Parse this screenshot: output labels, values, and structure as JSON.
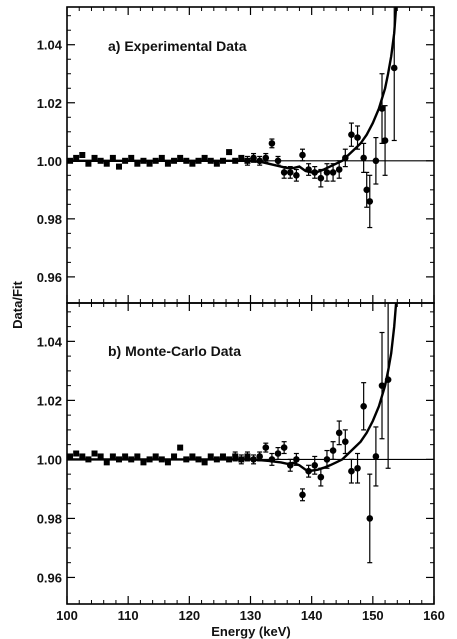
{
  "chart_data": [
    {
      "type": "scatter",
      "panel": "a",
      "title": "a) Experimental Data",
      "xlabel": "Energy (keV)",
      "ylabel": "Data/Fit",
      "xlim": [
        100,
        160
      ],
      "ylim": [
        0.951,
        1.053
      ],
      "x_ticks": [
        100,
        110,
        120,
        130,
        140,
        150,
        160
      ],
      "y_ticks": [
        "0.96",
        "0.98",
        "1.00",
        "1.02",
        "1.04"
      ],
      "reference_line": 1.0,
      "grid": false,
      "points": [
        {
          "x": 100.5,
          "y": 1.0,
          "err": 0.001
        },
        {
          "x": 101.5,
          "y": 1.001,
          "err": 0.001
        },
        {
          "x": 102.5,
          "y": 1.002,
          "err": 0.001
        },
        {
          "x": 103.5,
          "y": 0.999,
          "err": 0.001
        },
        {
          "x": 104.5,
          "y": 1.001,
          "err": 0.001
        },
        {
          "x": 105.5,
          "y": 1.0,
          "err": 0.001
        },
        {
          "x": 106.5,
          "y": 0.999,
          "err": 0.001
        },
        {
          "x": 107.5,
          "y": 1.001,
          "err": 0.001
        },
        {
          "x": 108.5,
          "y": 0.998,
          "err": 0.001
        },
        {
          "x": 109.5,
          "y": 1.0,
          "err": 0.001
        },
        {
          "x": 110.5,
          "y": 1.001,
          "err": 0.001
        },
        {
          "x": 111.5,
          "y": 0.999,
          "err": 0.001
        },
        {
          "x": 112.5,
          "y": 1.0,
          "err": 0.001
        },
        {
          "x": 113.5,
          "y": 0.999,
          "err": 0.001
        },
        {
          "x": 114.5,
          "y": 1.0,
          "err": 0.001
        },
        {
          "x": 115.5,
          "y": 1.001,
          "err": 0.001
        },
        {
          "x": 116.5,
          "y": 0.999,
          "err": 0.001
        },
        {
          "x": 117.5,
          "y": 1.0,
          "err": 0.001
        },
        {
          "x": 118.5,
          "y": 1.001,
          "err": 0.001
        },
        {
          "x": 119.5,
          "y": 1.0,
          "err": 0.001
        },
        {
          "x": 120.5,
          "y": 0.999,
          "err": 0.001
        },
        {
          "x": 121.5,
          "y": 1.0,
          "err": 0.001
        },
        {
          "x": 122.5,
          "y": 1.001,
          "err": 0.001
        },
        {
          "x": 123.5,
          "y": 1.0,
          "err": 0.001
        },
        {
          "x": 124.5,
          "y": 0.999,
          "err": 0.001
        },
        {
          "x": 125.5,
          "y": 1.0,
          "err": 0.001
        },
        {
          "x": 126.5,
          "y": 1.003,
          "err": 0.001
        },
        {
          "x": 127.5,
          "y": 1.0,
          "err": 0.001
        },
        {
          "x": 128.5,
          "y": 1.001,
          "err": 0.001
        },
        {
          "x": 129.5,
          "y": 1.0,
          "err": 0.0015
        },
        {
          "x": 130.5,
          "y": 1.001,
          "err": 0.0015
        },
        {
          "x": 131.5,
          "y": 1.0,
          "err": 0.0015
        },
        {
          "x": 132.5,
          "y": 1.001,
          "err": 0.0015
        },
        {
          "x": 133.5,
          "y": 1.006,
          "err": 0.0015
        },
        {
          "x": 134.5,
          "y": 1.0,
          "err": 0.0015
        },
        {
          "x": 135.5,
          "y": 0.996,
          "err": 0.002
        },
        {
          "x": 136.5,
          "y": 0.996,
          "err": 0.002
        },
        {
          "x": 137.5,
          "y": 0.995,
          "err": 0.002
        },
        {
          "x": 138.5,
          "y": 1.002,
          "err": 0.002
        },
        {
          "x": 139.5,
          "y": 0.997,
          "err": 0.002
        },
        {
          "x": 140.5,
          "y": 0.996,
          "err": 0.002
        },
        {
          "x": 141.5,
          "y": 0.994,
          "err": 0.003
        },
        {
          "x": 142.5,
          "y": 0.996,
          "err": 0.003
        },
        {
          "x": 143.5,
          "y": 0.996,
          "err": 0.003
        },
        {
          "x": 144.5,
          "y": 0.997,
          "err": 0.003
        },
        {
          "x": 145.5,
          "y": 1.001,
          "err": 0.003
        },
        {
          "x": 146.5,
          "y": 1.009,
          "err": 0.004
        },
        {
          "x": 147.5,
          "y": 1.008,
          "err": 0.004
        },
        {
          "x": 148.5,
          "y": 1.001,
          "err": 0.005
        },
        {
          "x": 149.0,
          "y": 0.99,
          "err": 0.006
        },
        {
          "x": 149.5,
          "y": 0.986,
          "err": 0.009
        },
        {
          "x": 150.5,
          "y": 1.0,
          "err": 0.008
        },
        {
          "x": 151.5,
          "y": 1.018,
          "err": 0.012
        },
        {
          "x": 152.0,
          "y": 1.007,
          "err": 0.012
        },
        {
          "x": 153.5,
          "y": 1.032,
          "err": 0.025
        }
      ],
      "fit_curve": [
        [
          100,
          1.0
        ],
        [
          130,
          1.0
        ],
        [
          132,
          0.9995
        ],
        [
          134,
          0.9985
        ],
        [
          136,
          0.9975
        ],
        [
          137,
          0.9975
        ],
        [
          138,
          0.998
        ],
        [
          139,
          0.9965
        ],
        [
          140,
          0.996
        ],
        [
          141,
          0.9962
        ],
        [
          142,
          0.997
        ],
        [
          143,
          0.998
        ],
        [
          144,
          0.999
        ],
        [
          145,
          1.0
        ],
        [
          146,
          1.002
        ],
        [
          147,
          1.004
        ],
        [
          148,
          1.006
        ],
        [
          149,
          1.009
        ],
        [
          150,
          1.013
        ],
        [
          151,
          1.018
        ],
        [
          152,
          1.025
        ],
        [
          152.5,
          1.03
        ],
        [
          153,
          1.036
        ],
        [
          153.5,
          1.044
        ],
        [
          153.8,
          1.053
        ]
      ]
    },
    {
      "type": "scatter",
      "panel": "b",
      "title": "b) Monte-Carlo Data",
      "xlabel": "Energy (keV)",
      "ylabel": "Data/Fit",
      "xlim": [
        100,
        160
      ],
      "ylim": [
        0.951,
        1.053
      ],
      "x_ticks": [
        100,
        110,
        120,
        130,
        140,
        150,
        160
      ],
      "y_ticks": [
        "0.96",
        "0.98",
        "1.00",
        "1.02",
        "1.04"
      ],
      "reference_line": 1.0,
      "grid": false,
      "points": [
        {
          "x": 100.5,
          "y": 1.001,
          "err": 0.001
        },
        {
          "x": 101.5,
          "y": 1.002,
          "err": 0.001
        },
        {
          "x": 102.5,
          "y": 1.001,
          "err": 0.001
        },
        {
          "x": 103.5,
          "y": 1.0,
          "err": 0.001
        },
        {
          "x": 104.5,
          "y": 1.002,
          "err": 0.001
        },
        {
          "x": 105.5,
          "y": 1.001,
          "err": 0.001
        },
        {
          "x": 106.5,
          "y": 0.999,
          "err": 0.001
        },
        {
          "x": 107.5,
          "y": 1.001,
          "err": 0.001
        },
        {
          "x": 108.5,
          "y": 1.0,
          "err": 0.001
        },
        {
          "x": 109.5,
          "y": 1.001,
          "err": 0.001
        },
        {
          "x": 110.5,
          "y": 1.0,
          "err": 0.001
        },
        {
          "x": 111.5,
          "y": 1.001,
          "err": 0.001
        },
        {
          "x": 112.5,
          "y": 0.999,
          "err": 0.001
        },
        {
          "x": 113.5,
          "y": 1.0,
          "err": 0.001
        },
        {
          "x": 114.5,
          "y": 1.001,
          "err": 0.001
        },
        {
          "x": 115.5,
          "y": 1.0,
          "err": 0.001
        },
        {
          "x": 116.5,
          "y": 0.999,
          "err": 0.001
        },
        {
          "x": 117.5,
          "y": 1.001,
          "err": 0.001
        },
        {
          "x": 118.5,
          "y": 1.004,
          "err": 0.001
        },
        {
          "x": 119.5,
          "y": 1.0,
          "err": 0.001
        },
        {
          "x": 120.5,
          "y": 1.001,
          "err": 0.001
        },
        {
          "x": 121.5,
          "y": 1.0,
          "err": 0.001
        },
        {
          "x": 122.5,
          "y": 0.999,
          "err": 0.001
        },
        {
          "x": 123.5,
          "y": 1.001,
          "err": 0.001
        },
        {
          "x": 124.5,
          "y": 1.0,
          "err": 0.001
        },
        {
          "x": 125.5,
          "y": 1.001,
          "err": 0.001
        },
        {
          "x": 126.5,
          "y": 1.0,
          "err": 0.001
        },
        {
          "x": 127.5,
          "y": 1.001,
          "err": 0.0015
        },
        {
          "x": 128.5,
          "y": 1.0,
          "err": 0.0015
        },
        {
          "x": 129.5,
          "y": 1.001,
          "err": 0.0015
        },
        {
          "x": 130.5,
          "y": 1.0,
          "err": 0.0015
        },
        {
          "x": 131.5,
          "y": 1.001,
          "err": 0.0015
        },
        {
          "x": 132.5,
          "y": 1.004,
          "err": 0.0015
        },
        {
          "x": 133.5,
          "y": 1.0,
          "err": 0.002
        },
        {
          "x": 134.5,
          "y": 1.002,
          "err": 0.002
        },
        {
          "x": 135.5,
          "y": 1.004,
          "err": 0.002
        },
        {
          "x": 136.5,
          "y": 0.998,
          "err": 0.002
        },
        {
          "x": 137.5,
          "y": 1.0,
          "err": 0.002
        },
        {
          "x": 138.5,
          "y": 0.988,
          "err": 0.002
        },
        {
          "x": 139.5,
          "y": 0.996,
          "err": 0.002
        },
        {
          "x": 140.5,
          "y": 0.998,
          "err": 0.003
        },
        {
          "x": 141.5,
          "y": 0.994,
          "err": 0.003
        },
        {
          "x": 142.5,
          "y": 1.0,
          "err": 0.003
        },
        {
          "x": 143.5,
          "y": 1.003,
          "err": 0.003
        },
        {
          "x": 144.5,
          "y": 1.009,
          "err": 0.004
        },
        {
          "x": 145.5,
          "y": 1.006,
          "err": 0.004
        },
        {
          "x": 146.5,
          "y": 0.996,
          "err": 0.004
        },
        {
          "x": 147.5,
          "y": 0.997,
          "err": 0.005
        },
        {
          "x": 148.5,
          "y": 1.018,
          "err": 0.008
        },
        {
          "x": 149.5,
          "y": 0.98,
          "err": 0.015
        },
        {
          "x": 150.5,
          "y": 1.001,
          "err": 0.01
        },
        {
          "x": 151.5,
          "y": 1.025,
          "err": 0.018
        },
        {
          "x": 152.5,
          "y": 1.027,
          "err": 0.03
        }
      ],
      "fit_curve": [
        [
          100,
          1.0
        ],
        [
          130,
          1.0
        ],
        [
          133,
          0.9995
        ],
        [
          135,
          0.999
        ],
        [
          136,
          0.9985
        ],
        [
          137,
          0.9988
        ],
        [
          138,
          0.998
        ],
        [
          139,
          0.9965
        ],
        [
          140,
          0.9962
        ],
        [
          141,
          0.9965
        ],
        [
          142,
          0.9972
        ],
        [
          143,
          0.998
        ],
        [
          144,
          0.999
        ],
        [
          145,
          1.0
        ],
        [
          146,
          1.002
        ],
        [
          147,
          1.004
        ],
        [
          148,
          1.006
        ],
        [
          149,
          1.009
        ],
        [
          150,
          1.013
        ],
        [
          151,
          1.018
        ],
        [
          152,
          1.025
        ],
        [
          152.5,
          1.03
        ],
        [
          153,
          1.036
        ],
        [
          153.5,
          1.045
        ],
        [
          153.8,
          1.053
        ]
      ]
    }
  ]
}
